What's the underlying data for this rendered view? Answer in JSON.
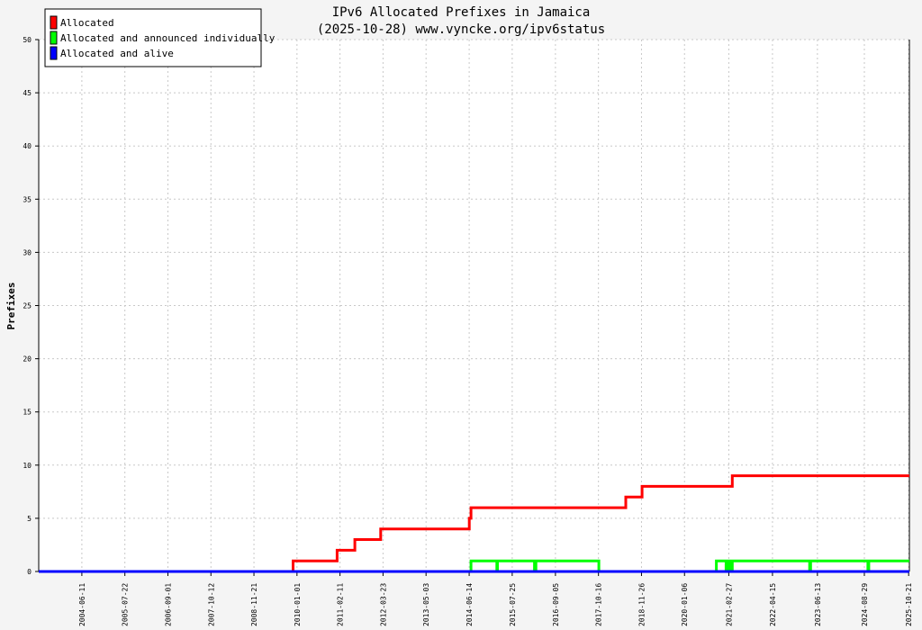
{
  "chart_data": {
    "type": "line",
    "title": "IPv6 Allocated Prefixes in Jamaica",
    "subtitle": "(2025-10-28) www.vyncke.org/ipv6status",
    "ylabel": "Prefixes",
    "xlabel": "",
    "ylim": [
      0,
      50
    ],
    "y_ticks": [
      0,
      5,
      10,
      15,
      20,
      25,
      30,
      35,
      40,
      45,
      50
    ],
    "x_range": [
      "2003-05-01",
      "2025-10-28"
    ],
    "x_ticks": [
      "2004-06-11",
      "2005-07-22",
      "2006-09-01",
      "2007-10-12",
      "2008-11-21",
      "2010-01-01",
      "2011-02-11",
      "2012-03-23",
      "2013-05-03",
      "2014-06-14",
      "2015-07-25",
      "2016-09-05",
      "2017-10-16",
      "2018-11-26",
      "2020-01-06",
      "2021-02-27",
      "2022-04-15",
      "2023-06-13",
      "2024-08-29",
      "2025-10-21"
    ],
    "grid": true,
    "legend_position": "top-left",
    "series": [
      {
        "name": "Allocated",
        "color": "#ff0000",
        "points": [
          [
            "2003-05-01",
            0
          ],
          [
            "2009-11-25",
            1
          ],
          [
            "2011-01-15",
            2
          ],
          [
            "2011-07-01",
            3
          ],
          [
            "2012-03-01",
            4
          ],
          [
            "2014-06-15",
            5
          ],
          [
            "2014-07-01",
            6
          ],
          [
            "2018-07-01",
            7
          ],
          [
            "2018-12-01",
            8
          ],
          [
            "2021-04-01",
            9
          ],
          [
            "2025-10-28",
            9
          ]
        ]
      },
      {
        "name": "Allocated and announced individually",
        "color": "#00ff00",
        "points": [
          [
            "2003-05-01",
            0
          ],
          [
            "2014-07-01",
            1
          ],
          [
            "2015-03-01",
            1
          ],
          [
            "2015-03-02",
            0
          ],
          [
            "2015-03-08",
            1
          ],
          [
            "2016-02-20",
            0
          ],
          [
            "2016-03-05",
            1
          ],
          [
            "2017-10-20",
            0
          ],
          [
            "2020-11-01",
            1
          ],
          [
            "2021-02-01",
            0
          ],
          [
            "2021-02-10",
            1
          ],
          [
            "2021-03-01",
            0
          ],
          [
            "2021-03-10",
            1
          ],
          [
            "2021-03-20",
            0
          ],
          [
            "2021-04-01",
            1
          ],
          [
            "2023-04-01",
            0
          ],
          [
            "2023-04-10",
            1
          ],
          [
            "2024-10-01",
            0
          ],
          [
            "2024-10-10",
            1
          ],
          [
            "2025-10-28",
            1
          ]
        ]
      },
      {
        "name": "Allocated and alive",
        "color": "#0000ff",
        "points": [
          [
            "2003-05-01",
            0
          ],
          [
            "2025-10-28",
            0
          ]
        ]
      }
    ]
  }
}
